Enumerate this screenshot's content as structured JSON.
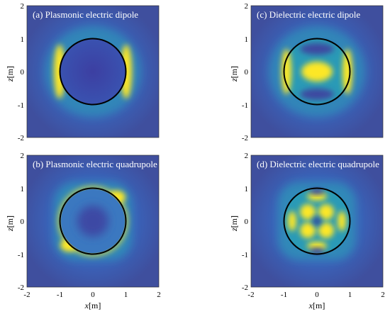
{
  "chart_data": [
    {
      "type": "heatmap",
      "title": "(a) Plasmonic electric dipole",
      "xlabel": "",
      "ylabel": "z[m]",
      "xlim": [
        -2,
        2
      ],
      "ylim": [
        -2,
        2
      ],
      "xticks": [
        "",
        "",
        "",
        "",
        ""
      ],
      "yticks": [
        "-2",
        "-1",
        "0",
        "1",
        "2"
      ],
      "circle_radius": 1,
      "field_pattern": "bright crescents just outside the left and right of the circle, dark interior"
    },
    {
      "type": "heatmap",
      "title": "(c) Dielectric electric dipole",
      "xlabel": "",
      "ylabel": "z[m]",
      "xlim": [
        -2,
        2
      ],
      "ylim": [
        -2,
        2
      ],
      "xticks": [
        "",
        "",
        "",
        "",
        ""
      ],
      "yticks": [
        "-2",
        "-1",
        "0",
        "1",
        "2"
      ],
      "circle_radius": 1,
      "field_pattern": "bright central lobe at origin, bright bands on left and right inner edges, lobes above and below"
    },
    {
      "type": "heatmap",
      "title": "(b) Plasmonic electric quadrupole",
      "xlabel": "x[m]",
      "ylabel": "z[m]",
      "xlim": [
        -2,
        2
      ],
      "ylim": [
        -2,
        2
      ],
      "xticks": [
        "-2",
        "-1",
        "0",
        "1",
        "2"
      ],
      "yticks": [
        "-2",
        "-1",
        "0",
        "1",
        "2"
      ],
      "circle_radius": 1,
      "field_pattern": "bright rim at the circle boundary strongest at diagonal corners, dark centre"
    },
    {
      "type": "heatmap",
      "title": "(d) Dielectric electric quadrupole",
      "xlabel": "x[m]",
      "ylabel": "z[m]",
      "xlim": [
        -2,
        2
      ],
      "ylim": [
        -2,
        2
      ],
      "xticks": [
        "-2",
        "-1",
        "0",
        "1",
        "2"
      ],
      "yticks": [
        "-2",
        "-1",
        "0",
        "1",
        "2"
      ],
      "circle_radius": 1,
      "field_pattern": "four bright lobes on diagonals around origin, dark centre and axis nodes, bright edge lobes"
    }
  ],
  "colormap": [
    "#440154",
    "#3b528b",
    "#21918c",
    "#5ec962",
    "#fde725"
  ],
  "background_color": "#3a62b8",
  "circle_color": "#000000"
}
